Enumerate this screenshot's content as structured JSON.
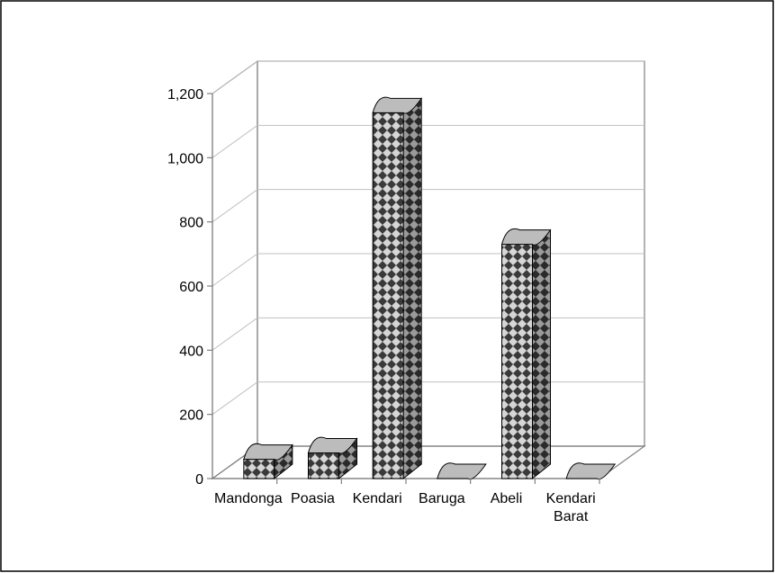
{
  "chart_data": {
    "type": "bar",
    "style": "3d-column",
    "categories": [
      "Mandonga",
      "Poasia",
      "Kendari",
      "Baruga",
      "Abeli",
      "Kendari Barat"
    ],
    "values": [
      60,
      80,
      1140,
      0,
      730,
      0
    ],
    "ylim": [
      0,
      1200
    ],
    "yticks": [
      "0",
      "200",
      "400",
      "600",
      "800",
      "1,000",
      "1,200"
    ],
    "grid": true,
    "legend": "none"
  },
  "colors": {
    "bar_front": "#d6d6d6",
    "bar_pattern": "#3a3a3a",
    "bar_side": "#8a8a8a",
    "bar_top": "#bcbcbc",
    "grid": "#c0c0c0",
    "axis": "#808080"
  }
}
